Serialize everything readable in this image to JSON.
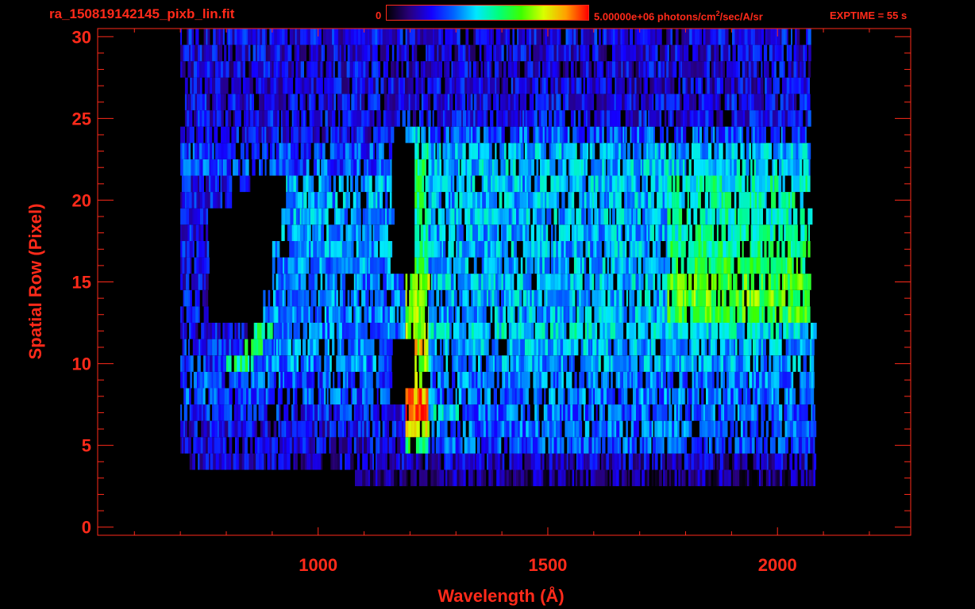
{
  "header": {
    "file_name": "ra_150819142145_pixb_lin.fit",
    "colorbar_min": "0",
    "colorbar_max_value": "5.00000e+06 photons/cm",
    "colorbar_max_sup": "2",
    "colorbar_max_tail": "/sec/A/sr",
    "exptime": "EXPTIME = 55 s"
  },
  "colors": {
    "text": "#ff2a1a",
    "frame": "#ff2a1a",
    "background": "#000000",
    "colormap": [
      "#000000",
      "#28007a",
      "#1400ff",
      "#0064ff",
      "#00e8ff",
      "#00ff7a",
      "#3cff00",
      "#d8ff00",
      "#ffa000",
      "#ff0000"
    ]
  },
  "chart_data": {
    "type": "heatmap",
    "title": "",
    "xlabel": "Wavelength (Å)",
    "ylabel": "Spatial Row (Pixel)",
    "xlim": [
      520,
      2290
    ],
    "ylim": [
      -0.5,
      30.5
    ],
    "x_ticks": [
      1000,
      1500,
      2000
    ],
    "y_ticks": [
      0,
      5,
      10,
      15,
      20,
      25,
      30
    ],
    "colorbar": {
      "min": 0,
      "max": 5000000,
      "unit": "photons/cm2/sec/A/sr",
      "colormap": "rainbow"
    },
    "data_extent_x": [
      700,
      2090
    ],
    "rows": [
      {
        "row": 0,
        "segments": []
      },
      {
        "row": 1,
        "segments": []
      },
      {
        "row": 2,
        "segments": []
      },
      {
        "row": 3,
        "segments": [
          [
            1080,
            2080,
            0.12
          ]
        ]
      },
      {
        "row": 4,
        "segments": [
          [
            720,
            2080,
            0.18
          ]
        ]
      },
      {
        "row": 5,
        "segments": [
          [
            700,
            1190,
            0.2
          ],
          [
            1190,
            1240,
            0.6
          ],
          [
            1240,
            2080,
            0.3
          ]
        ]
      },
      {
        "row": 6,
        "segments": [
          [
            700,
            1190,
            0.22
          ],
          [
            1190,
            1240,
            0.75
          ],
          [
            1240,
            2080,
            0.32
          ]
        ]
      },
      {
        "row": 7,
        "segments": [
          [
            700,
            1190,
            0.25
          ],
          [
            1190,
            1240,
            0.95
          ],
          [
            1240,
            1310,
            0.45
          ],
          [
            1310,
            2080,
            0.32
          ]
        ]
      },
      {
        "row": 8,
        "segments": [
          [
            700,
            1160,
            0.3
          ],
          [
            1190,
            1240,
            0.9
          ],
          [
            1240,
            2080,
            0.34
          ]
        ]
      },
      {
        "row": 9,
        "segments": [
          [
            700,
            1160,
            0.3
          ],
          [
            1210,
            1240,
            0.7
          ],
          [
            1240,
            2080,
            0.35
          ]
        ]
      },
      {
        "row": 10,
        "segments": [
          [
            700,
            800,
            0.25
          ],
          [
            800,
            860,
            0.55
          ],
          [
            860,
            1160,
            0.35
          ],
          [
            1210,
            1240,
            0.75
          ],
          [
            1240,
            2080,
            0.38
          ]
        ]
      },
      {
        "row": 11,
        "segments": [
          [
            700,
            840,
            0.25
          ],
          [
            840,
            880,
            0.6
          ],
          [
            880,
            1160,
            0.35
          ],
          [
            1210,
            1240,
            0.8
          ],
          [
            1240,
            2080,
            0.4
          ]
        ]
      },
      {
        "row": 12,
        "segments": [
          [
            700,
            840,
            0.22
          ],
          [
            860,
            900,
            0.55
          ],
          [
            900,
            1190,
            0.35
          ],
          [
            1190,
            1240,
            0.75
          ],
          [
            1240,
            2080,
            0.45
          ]
        ]
      },
      {
        "row": 13,
        "segments": [
          [
            700,
            760,
            0.22
          ],
          [
            880,
            1190,
            0.35
          ],
          [
            1190,
            1240,
            0.7
          ],
          [
            1240,
            1760,
            0.4
          ],
          [
            1760,
            2070,
            0.62
          ]
        ]
      },
      {
        "row": 14,
        "segments": [
          [
            700,
            760,
            0.22
          ],
          [
            880,
            1190,
            0.35
          ],
          [
            1190,
            1240,
            0.72
          ],
          [
            1240,
            1760,
            0.4
          ],
          [
            1760,
            2070,
            0.66
          ]
        ]
      },
      {
        "row": 15,
        "segments": [
          [
            700,
            760,
            0.22
          ],
          [
            900,
            1190,
            0.36
          ],
          [
            1190,
            1240,
            0.7
          ],
          [
            1240,
            1760,
            0.42
          ],
          [
            1760,
            2070,
            0.64
          ]
        ]
      },
      {
        "row": 16,
        "segments": [
          [
            700,
            760,
            0.22
          ],
          [
            900,
            1160,
            0.36
          ],
          [
            1210,
            1240,
            0.6
          ],
          [
            1240,
            1760,
            0.4
          ],
          [
            1760,
            2070,
            0.6
          ]
        ]
      },
      {
        "row": 17,
        "segments": [
          [
            700,
            760,
            0.22
          ],
          [
            900,
            1160,
            0.38
          ],
          [
            1210,
            1240,
            0.55
          ],
          [
            1240,
            1760,
            0.4
          ],
          [
            1760,
            2070,
            0.55
          ]
        ]
      },
      {
        "row": 18,
        "segments": [
          [
            700,
            760,
            0.22
          ],
          [
            920,
            1160,
            0.38
          ],
          [
            1210,
            1240,
            0.55
          ],
          [
            1240,
            1760,
            0.4
          ],
          [
            1760,
            2070,
            0.52
          ]
        ]
      },
      {
        "row": 19,
        "segments": [
          [
            700,
            760,
            0.22
          ],
          [
            920,
            1160,
            0.38
          ],
          [
            1210,
            1240,
            0.55
          ],
          [
            1240,
            1760,
            0.4
          ],
          [
            1760,
            2070,
            0.5
          ]
        ]
      },
      {
        "row": 20,
        "segments": [
          [
            700,
            810,
            0.22
          ],
          [
            930,
            1160,
            0.38
          ],
          [
            1210,
            1240,
            0.55
          ],
          [
            1240,
            1760,
            0.4
          ],
          [
            1760,
            2070,
            0.5
          ]
        ]
      },
      {
        "row": 21,
        "segments": [
          [
            700,
            850,
            0.22
          ],
          [
            930,
            1160,
            0.38
          ],
          [
            1210,
            1240,
            0.55
          ],
          [
            1240,
            1760,
            0.4
          ],
          [
            1760,
            2070,
            0.5
          ]
        ]
      },
      {
        "row": 22,
        "segments": [
          [
            700,
            1160,
            0.3
          ],
          [
            1210,
            1240,
            0.55
          ],
          [
            1240,
            2070,
            0.42
          ]
        ]
      },
      {
        "row": 23,
        "segments": [
          [
            700,
            1160,
            0.28
          ],
          [
            1210,
            1240,
            0.5
          ],
          [
            1240,
            2070,
            0.4
          ]
        ]
      },
      {
        "row": 24,
        "segments": [
          [
            700,
            1160,
            0.22
          ],
          [
            1190,
            1240,
            0.4
          ],
          [
            1240,
            2070,
            0.3
          ]
        ]
      },
      {
        "row": 25,
        "segments": [
          [
            710,
            2070,
            0.22
          ]
        ]
      },
      {
        "row": 26,
        "segments": [
          [
            710,
            2070,
            0.22
          ]
        ]
      },
      {
        "row": 27,
        "segments": [
          [
            710,
            2070,
            0.2
          ]
        ]
      },
      {
        "row": 28,
        "segments": [
          [
            700,
            2070,
            0.2
          ]
        ]
      },
      {
        "row": 29,
        "segments": [
          [
            700,
            2070,
            0.2
          ]
        ]
      },
      {
        "row": 30,
        "segments": [
          [
            700,
            2070,
            0.22
          ]
        ]
      }
    ]
  }
}
